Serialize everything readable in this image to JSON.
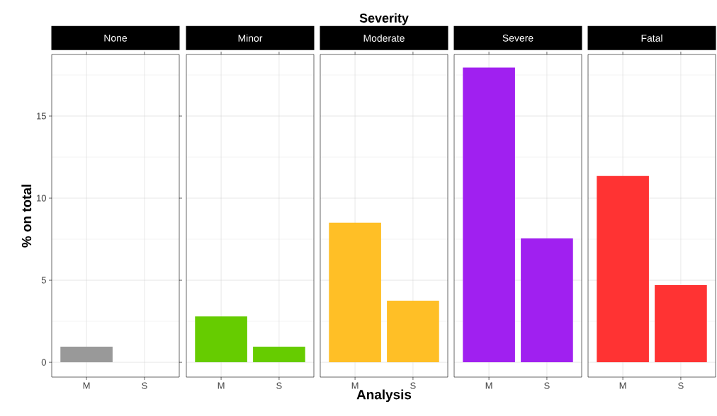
{
  "chart_data": [
    {
      "type": "bar",
      "title": "None",
      "categories": [
        "M",
        "S"
      ],
      "values": [
        0.95,
        0
      ],
      "color": "#999999",
      "ylabel": "% on total",
      "ylim": [
        -0.9,
        18.75
      ],
      "yticks": [
        0,
        5,
        10,
        15
      ],
      "grid": true
    },
    {
      "type": "bar",
      "title": "Minor",
      "categories": [
        "M",
        "S"
      ],
      "values": [
        2.8,
        0.95
      ],
      "color": "#66cc00",
      "ylim": [
        -0.9,
        18.75
      ],
      "yticks": [
        0,
        5,
        10,
        15
      ],
      "grid": true,
      "tick_labels": "x"
    },
    {
      "type": "bar",
      "title": "Moderate",
      "categories": [
        "M",
        "S"
      ],
      "values": [
        8.5,
        3.75
      ],
      "color": "#ffbf26",
      "xlabel": "Analysis",
      "annotations": [
        "Severity"
      ],
      "ylim": [
        -0.9,
        18.75
      ],
      "yticks": [
        0,
        5,
        10,
        15
      ],
      "grid": true,
      "tick_labels": "x"
    },
    {
      "type": "bar",
      "title": "Severe",
      "categories": [
        "M",
        "S"
      ],
      "values": [
        17.95,
        7.55
      ],
      "color": "#a020f0",
      "ylim": [
        -0.9,
        18.75
      ],
      "yticks": [
        0,
        5,
        10,
        15
      ],
      "grid": true,
      "tick_labels": "x"
    },
    {
      "type": "bar",
      "title": "Fatal",
      "categories": [
        "M",
        "S"
      ],
      "values": [
        11.35,
        4.7
      ],
      "color": "#ff3333",
      "ylim": [
        -0.9,
        18.75
      ],
      "yticks": [
        0,
        5,
        10,
        15
      ],
      "grid": true,
      "tick_labels": "x"
    }
  ]
}
